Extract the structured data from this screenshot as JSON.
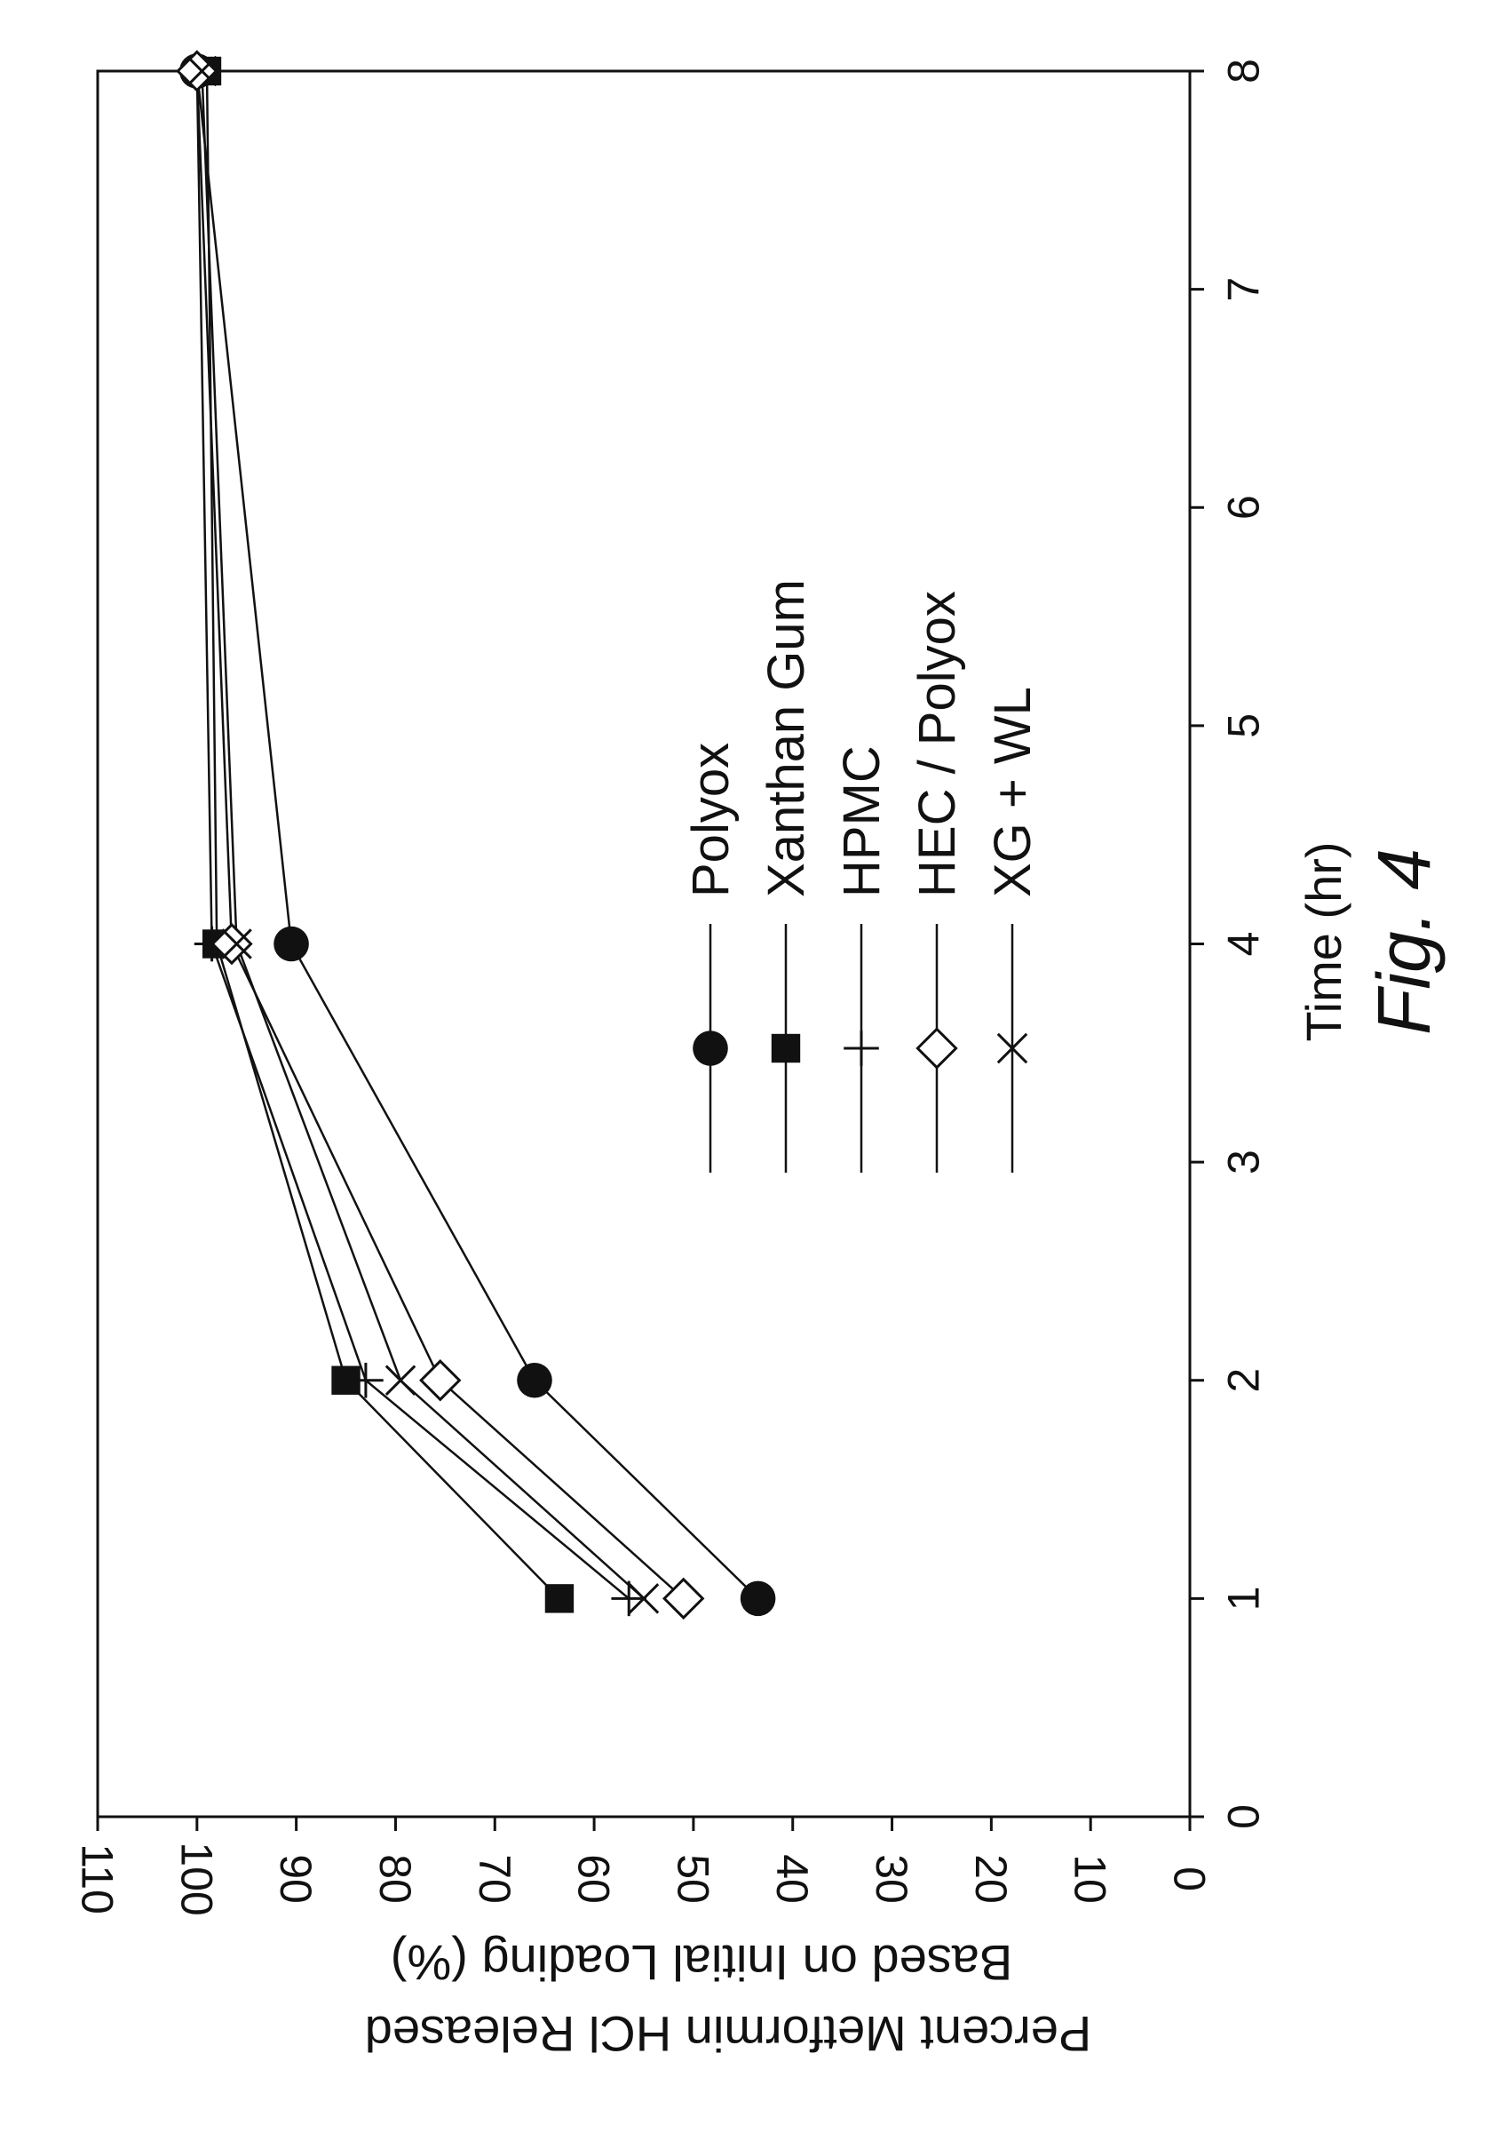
{
  "figure": {
    "caption": "Fig. 4"
  },
  "chart_data": {
    "type": "line",
    "title": "",
    "xlabel": "Time  (hr)",
    "ylabel_line1": "Percent Metformin HCl Released",
    "ylabel_line2": "Based on Initial Loading  (%)",
    "xlim": [
      0,
      8
    ],
    "ylim": [
      0,
      110
    ],
    "x_ticks": [
      0,
      1,
      2,
      3,
      4,
      5,
      6,
      7,
      8
    ],
    "y_ticks": [
      0,
      10,
      20,
      30,
      40,
      50,
      60,
      70,
      80,
      90,
      100,
      110
    ],
    "grid": false,
    "legend_position": "lower-right (rotated figure)",
    "series": [
      {
        "name": "Polyox",
        "marker": "filled-circle",
        "x": [
          1,
          2,
          4,
          8
        ],
        "y": [
          43.5,
          66,
          90.5,
          100
        ]
      },
      {
        "name": "Xanthan Gum",
        "marker": "filled-square",
        "x": [
          1,
          2,
          4,
          8
        ],
        "y": [
          63.5,
          85,
          98,
          99
        ]
      },
      {
        "name": "HPMC",
        "marker": "plus",
        "x": [
          1,
          2,
          4,
          8
        ],
        "y": [
          56.5,
          83,
          98.5,
          100
        ]
      },
      {
        "name": "HEC / Polyox",
        "marker": "open-diamond",
        "x": [
          1,
          2,
          4,
          8
        ],
        "y": [
          51,
          75.5,
          96.5,
          100
        ]
      },
      {
        "name": "XG + WL",
        "marker": "x-cross",
        "x": [
          1,
          2,
          4,
          8
        ],
        "y": [
          55,
          79.5,
          96,
          99.5
        ]
      }
    ]
  }
}
